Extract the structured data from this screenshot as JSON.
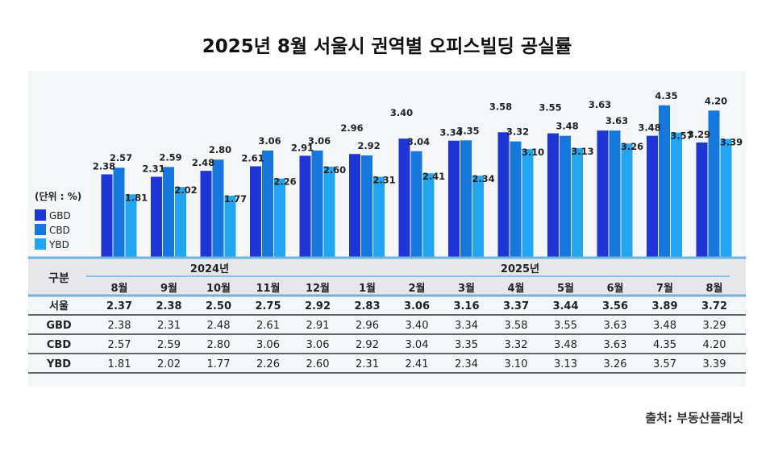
{
  "title": "2025년 8월 서울시 권역별 오피스빌딩 공실률",
  "source": "출처: 부동산플래닛",
  "chart_data": {
    "type": "bar",
    "title": "2025년 8월 서울시 권역별 오피스빌딩 공실률",
    "unit_label": "(단위 : %)",
    "years": [
      {
        "label": "2024년",
        "span": 5
      },
      {
        "label": "2025년",
        "span": 8
      }
    ],
    "categories": [
      "8월",
      "9월",
      "10월",
      "11월",
      "12월",
      "1월",
      "2월",
      "3월",
      "4월",
      "5월",
      "6월",
      "7월",
      "8월"
    ],
    "ylim": [
      0,
      4.5
    ],
    "grid": false,
    "legend_position": "left",
    "series": [
      {
        "name": "GBD",
        "color": "#1f35d6",
        "values": [
          2.38,
          2.31,
          2.48,
          2.61,
          2.91,
          2.96,
          3.4,
          3.34,
          3.58,
          3.55,
          3.63,
          3.48,
          3.29
        ]
      },
      {
        "name": "CBD",
        "color": "#1677dc",
        "values": [
          2.57,
          2.59,
          2.8,
          3.06,
          3.06,
          2.92,
          3.04,
          3.35,
          3.32,
          3.48,
          3.63,
          4.35,
          4.2
        ]
      },
      {
        "name": "YBD",
        "color": "#22a6f2",
        "values": [
          1.81,
          2.02,
          1.77,
          2.26,
          2.6,
          2.31,
          2.41,
          2.34,
          3.1,
          3.13,
          3.26,
          3.57,
          3.39
        ]
      }
    ],
    "table": {
      "header_label": "구분",
      "rows": [
        {
          "name": "서울",
          "bold": true,
          "values": [
            2.37,
            2.38,
            2.5,
            2.75,
            2.92,
            2.83,
            3.06,
            3.16,
            3.37,
            3.44,
            3.56,
            3.89,
            3.72
          ]
        },
        {
          "name": "GBD",
          "values": [
            2.38,
            2.31,
            2.48,
            2.61,
            2.91,
            2.96,
            3.4,
            3.34,
            3.58,
            3.55,
            3.63,
            3.48,
            3.29
          ]
        },
        {
          "name": "CBD",
          "values": [
            2.57,
            2.59,
            2.8,
            3.06,
            3.06,
            2.92,
            3.04,
            3.35,
            3.32,
            3.48,
            3.63,
            4.35,
            4.2
          ]
        },
        {
          "name": "YBD",
          "values": [
            1.81,
            2.02,
            1.77,
            2.26,
            2.6,
            2.31,
            2.41,
            2.34,
            3.1,
            3.13,
            3.26,
            3.57,
            3.39
          ]
        }
      ]
    }
  }
}
